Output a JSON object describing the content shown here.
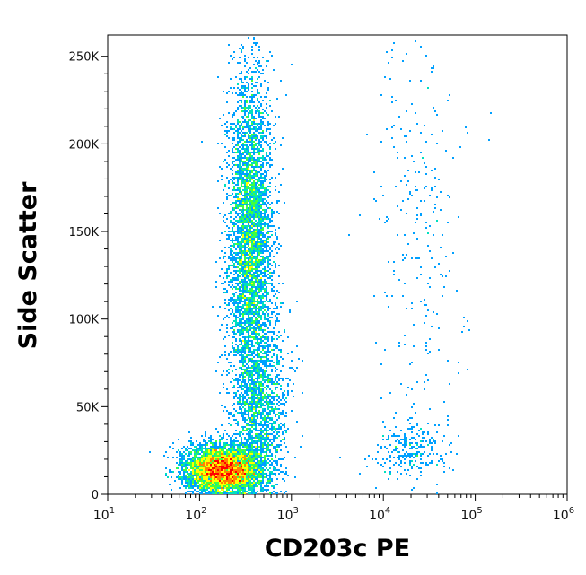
{
  "chart_data": {
    "type": "scatter",
    "style": "flow cytometry pseudocolor density dot plot",
    "title": "",
    "xlabel": "CD203c PE",
    "ylabel": "Side Scatter",
    "x_scale": "log",
    "xlim": [
      10,
      1000000
    ],
    "ylim": [
      0,
      262144
    ],
    "x_ticks": [
      {
        "value": 10,
        "base": "10",
        "exp": "1"
      },
      {
        "value": 100,
        "base": "10",
        "exp": "2"
      },
      {
        "value": 1000,
        "base": "10",
        "exp": "3"
      },
      {
        "value": 10000,
        "base": "10",
        "exp": "4"
      },
      {
        "value": 100000,
        "base": "10",
        "exp": "5"
      },
      {
        "value": 1000000,
        "base": "10",
        "exp": "6"
      }
    ],
    "y_ticks": [
      {
        "value": 0,
        "label": "0"
      },
      {
        "value": 50000,
        "label": "50K"
      },
      {
        "value": 100000,
        "label": "100K"
      },
      {
        "value": 150000,
        "label": "150K"
      },
      {
        "value": 200000,
        "label": "200K"
      },
      {
        "value": 250000,
        "label": "250K"
      }
    ],
    "colormap": [
      "#0000ff",
      "#00a0ff",
      "#00e0c0",
      "#40ff40",
      "#ffff00",
      "#ff8000",
      "#ff0000"
    ],
    "populations": [
      {
        "x_center": 180,
        "y_center": 14000,
        "x_spread_decades": 0.2,
        "y_spread": 7000,
        "density": "highest"
      },
      {
        "x_center": 350,
        "y_center": 150000,
        "x_spread_decades": 0.12,
        "y_spread": 45000,
        "density": "high"
      },
      {
        "x_center": 450,
        "y_center": 50000,
        "x_spread_decades": 0.15,
        "y_spread": 30000,
        "density": "medium"
      },
      {
        "x_center": 20000,
        "y_center": 25000,
        "x_spread_decades": 0.2,
        "y_spread": 8000,
        "density": "low"
      },
      {
        "x_center": 25000,
        "y_center": 150000,
        "x_spread_decades": 0.25,
        "y_spread": 60000,
        "density": "sparse"
      }
    ],
    "grid": false,
    "legend": "none"
  }
}
